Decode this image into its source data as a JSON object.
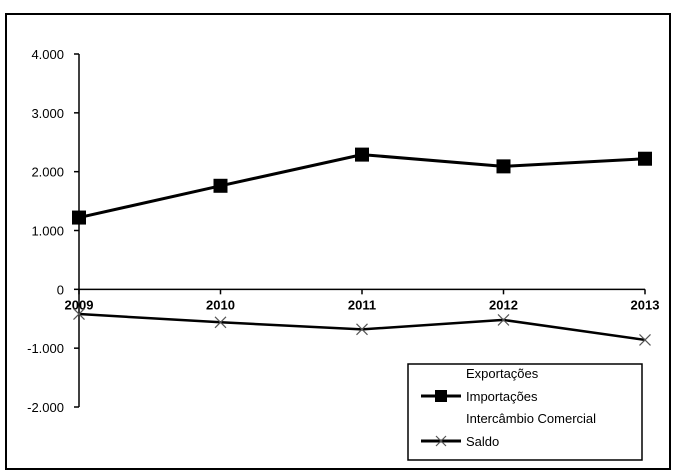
{
  "chart_data": {
    "type": "line",
    "categories": [
      "2009",
      "2010",
      "2011",
      "2012",
      "2013"
    ],
    "ylim": [
      -2000,
      4000
    ],
    "y_ticks": [
      4000,
      3000,
      2000,
      1000,
      0,
      -1000,
      -2000
    ],
    "y_tick_labels": [
      "4.000",
      "3.000",
      "2.000",
      "1.000",
      "0",
      "-1.000",
      "-2.000"
    ],
    "grid": false,
    "legend_position": "bottom-right",
    "series": [
      {
        "name": "Importações",
        "values": [
          1220,
          1760,
          2290,
          2090,
          2220
        ],
        "marker": "square",
        "color": "#000000"
      },
      {
        "name": "Saldo",
        "values": [
          -420,
          -560,
          -680,
          -520,
          -860
        ],
        "marker": "x",
        "color": "#000000"
      }
    ],
    "legend": [
      {
        "label": "Exportações",
        "swatch": "none"
      },
      {
        "label": "Importações",
        "swatch": "square-line"
      },
      {
        "label": "Intercâmbio Comercial",
        "swatch": "none"
      },
      {
        "label": "Saldo",
        "swatch": "x-line"
      }
    ]
  }
}
